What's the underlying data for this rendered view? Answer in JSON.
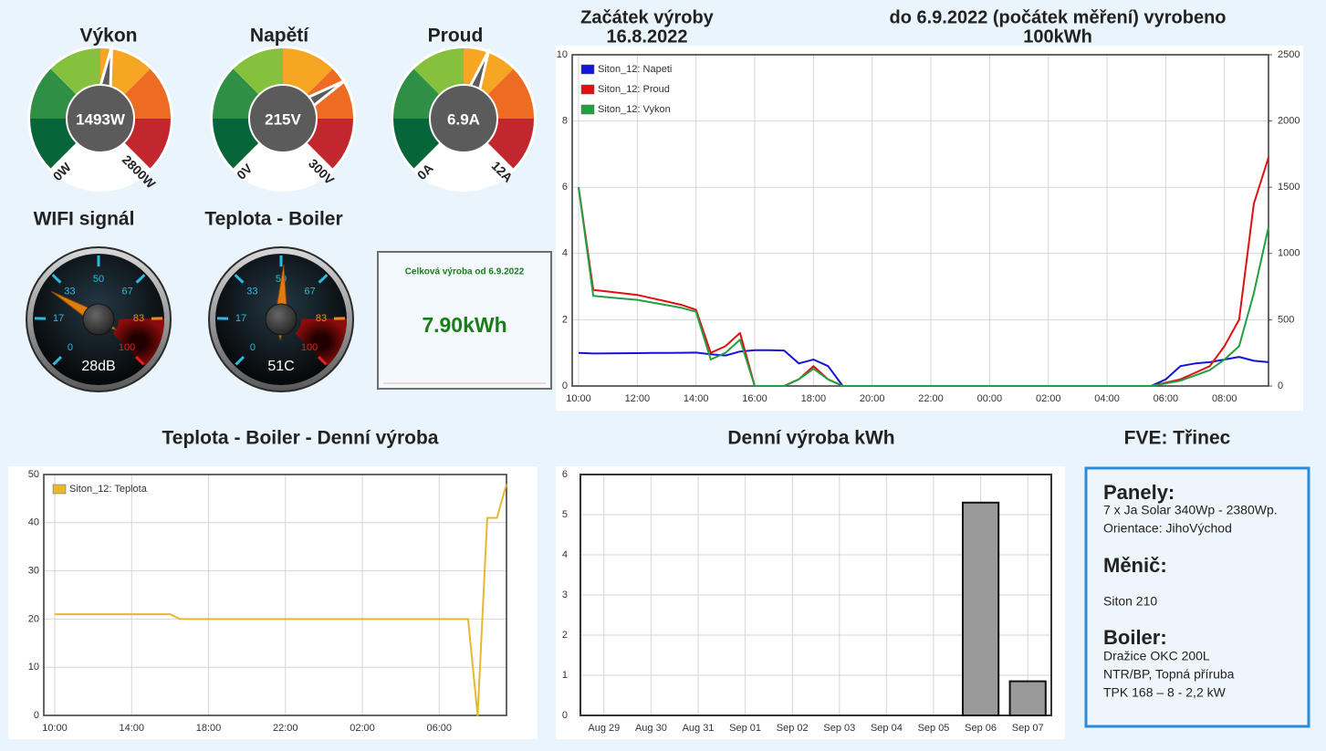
{
  "chart_data": [
    {
      "type": "gauge",
      "title": "Výkon",
      "values": [
        1493
      ],
      "value_labels": [
        "1493W"
      ],
      "ylim": [
        0,
        2800
      ],
      "yticks": [
        {
          "value": 0,
          "label": "0W"
        },
        {
          "value": 2800,
          "label": "2800W"
        }
      ],
      "colors": [
        "#06663a",
        "#2f8f45",
        "#86c13e",
        "#f6a623",
        "#ee6b22",
        "#c1272d"
      ]
    },
    {
      "type": "gauge",
      "title": "Napětí",
      "values": [
        215
      ],
      "value_labels": [
        "215V"
      ],
      "ylim": [
        0,
        300
      ],
      "yticks": [
        {
          "value": 0,
          "label": "0V"
        },
        {
          "value": 300,
          "label": "300V"
        }
      ],
      "colors": [
        "#06663a",
        "#2f8f45",
        "#86c13e",
        "#f6a623",
        "#ee6b22",
        "#c1272d"
      ]
    },
    {
      "type": "gauge",
      "title": "Proud",
      "values": [
        6.9
      ],
      "value_labels": [
        "6.9A"
      ],
      "ylim": [
        0,
        12
      ],
      "yticks": [
        {
          "value": 0,
          "label": "0A"
        },
        {
          "value": 12,
          "label": "12A"
        }
      ],
      "colors": [
        "#06663a",
        "#2f8f45",
        "#86c13e",
        "#f6a623",
        "#ee6b22",
        "#c1272d"
      ]
    },
    {
      "type": "dial",
      "title": "WIFI signál",
      "values": [
        28
      ],
      "value_labels": [
        "28dB"
      ],
      "ylim": [
        0,
        100
      ],
      "yticks": [
        0,
        17,
        33,
        50,
        67,
        83,
        100
      ],
      "tick_colors": [
        "#2fb8e0",
        "#2fb8e0",
        "#2fb8e0",
        "#2fb8e0",
        "#2fb8e0",
        "#f08a1c",
        "#e02020"
      ]
    },
    {
      "type": "dial",
      "title": "Teplota - Boiler",
      "values": [
        51
      ],
      "value_labels": [
        "51C"
      ],
      "ylim": [
        0,
        100
      ],
      "yticks": [
        0,
        17,
        33,
        50,
        67,
        83,
        100
      ],
      "tick_colors": [
        "#2fb8e0",
        "#2fb8e0",
        "#2fb8e0",
        "#2fb8e0",
        "#2fb8e0",
        "#f08a1c",
        "#e02020"
      ]
    },
    {
      "type": "line",
      "titles": [
        [
          "Začátek výroby",
          "16.8.2022"
        ],
        [
          "do 6.9.2022 (počátek měření) vyrobeno",
          "100kWh"
        ]
      ],
      "categories": [
        "10:00",
        null,
        null,
        null,
        "12:00",
        null,
        null,
        null,
        "14:00",
        null,
        null,
        null,
        "16:00",
        null,
        null,
        null,
        "18:00",
        null,
        null,
        null,
        "20:00",
        null,
        null,
        null,
        "22:00",
        null,
        null,
        null,
        "00:00",
        null,
        null,
        null,
        "02:00",
        null,
        null,
        null,
        "04:00",
        null,
        null,
        null,
        "06:00",
        null,
        null,
        null,
        "08:00",
        null,
        null,
        null
      ],
      "series": [
        {
          "name": "Siton_12: Napeti",
          "color": "#1414d8",
          "axis": "y2",
          "values": [
            250,
            245,
            246,
            247,
            248,
            249,
            250,
            251,
            252,
            240,
            230,
            260,
            270,
            270,
            268,
            170,
            200,
            150,
            0,
            0,
            0,
            0,
            0,
            0,
            0,
            0,
            0,
            0,
            0,
            0,
            0,
            0,
            0,
            0,
            0,
            0,
            0,
            0,
            0,
            0,
            50,
            150,
            170,
            180,
            200,
            220,
            190,
            180
          ]
        },
        {
          "name": "Siton_12: Proud",
          "color": "#e01010",
          "values": [
            6.0,
            2.9,
            2.85,
            2.8,
            2.75,
            2.65,
            2.55,
            2.45,
            2.3,
            1.0,
            1.2,
            1.6,
            0,
            0,
            0,
            0.2,
            0.6,
            0.2,
            0,
            0,
            0,
            0,
            0,
            0,
            0,
            0,
            0,
            0,
            0,
            0,
            0,
            0,
            0,
            0,
            0,
            0,
            0,
            0,
            0,
            0,
            0.1,
            0.2,
            0.4,
            0.6,
            1.2,
            2.0,
            5.5,
            6.9
          ]
        },
        {
          "name": "Siton_12: Vykon",
          "color": "#22a040",
          "axis": "y2",
          "values": [
            1500,
            680,
            670,
            660,
            650,
            630,
            610,
            590,
            560,
            200,
            250,
            350,
            0,
            0,
            0,
            50,
            130,
            50,
            0,
            0,
            0,
            0,
            0,
            0,
            0,
            0,
            0,
            0,
            0,
            0,
            0,
            0,
            0,
            0,
            0,
            0,
            0,
            0,
            0,
            0,
            20,
            40,
            80,
            120,
            200,
            300,
            700,
            1200
          ]
        }
      ],
      "ylim": [
        0,
        10
      ],
      "yticks": [
        0,
        2,
        4,
        6,
        8,
        10
      ],
      "y2lim": [
        0,
        2500
      ],
      "y2ticks": [
        0,
        500,
        1000,
        1500,
        2000,
        2500
      ],
      "grid": true,
      "legend": "top-left"
    },
    {
      "type": "line",
      "title": "Teplota - Boiler - Denní výroba",
      "categories": [
        "10:00",
        null,
        null,
        null,
        null,
        null,
        null,
        null,
        "14:00",
        null,
        null,
        null,
        null,
        null,
        null,
        null,
        "18:00",
        null,
        null,
        null,
        null,
        null,
        null,
        null,
        "22:00",
        null,
        null,
        null,
        null,
        null,
        null,
        null,
        "02:00",
        null,
        null,
        null,
        null,
        null,
        null,
        null,
        "06:00",
        null,
        null,
        null,
        null,
        null,
        null,
        null
      ],
      "series": [
        {
          "name": "Siton_12: Teplota",
          "color": "#e6b830",
          "values": [
            21,
            21,
            21,
            21,
            21,
            21,
            21,
            21,
            21,
            21,
            21,
            21,
            21,
            20,
            20,
            20,
            20,
            20,
            20,
            20,
            20,
            20,
            20,
            20,
            20,
            20,
            20,
            20,
            20,
            20,
            20,
            20,
            20,
            20,
            20,
            20,
            20,
            20,
            20,
            20,
            20,
            20,
            20,
            20,
            0,
            41,
            41,
            48
          ]
        }
      ],
      "ylim": [
        0,
        50
      ],
      "yticks": [
        0,
        10,
        20,
        30,
        40,
        50
      ],
      "grid": true,
      "legend": "top-left"
    },
    {
      "type": "bar",
      "title": "Denní výroba kWh",
      "categories": [
        "Aug 29",
        "Aug 30",
        "Aug 31",
        "Sep 01",
        "Sep 02",
        "Sep 03",
        "Sep 04",
        "Sep 05",
        "Sep 06",
        "Sep 07"
      ],
      "values": [
        0,
        0,
        0,
        0,
        0,
        0,
        0,
        0,
        5.3,
        0.85
      ],
      "color": "#9a9a9a",
      "ylim": [
        0,
        6
      ],
      "yticks": [
        0,
        1,
        2,
        3,
        4,
        5,
        6
      ],
      "grid": true
    }
  ],
  "summary": {
    "title": "Celková výroba od 6.9.2022",
    "value": "7.90kWh"
  },
  "info": {
    "title": "FVE: Třinec",
    "sections": [
      {
        "heading": "Panely:",
        "lines": [
          "7 x Ja Solar 340Wp - 2380Wp.",
          "Orientace: JihoVýchod"
        ]
      },
      {
        "heading": "Měnič:",
        "lines": [
          "Siton 210"
        ]
      },
      {
        "heading": "Boiler:",
        "lines": [
          "Dražice OKC 200L",
          "NTR/BP, Topná příruba",
          "TPK 168 – 8 - 2,2 kW"
        ]
      }
    ]
  }
}
